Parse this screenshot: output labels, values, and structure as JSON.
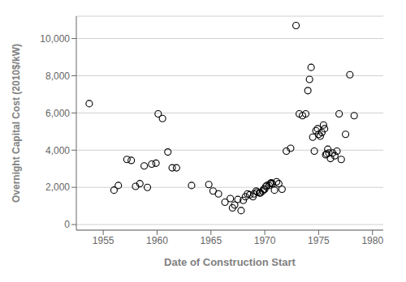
{
  "chart_data": {
    "type": "scatter",
    "xlabel": "Date of Construction Start",
    "ylabel": "Overnight Capital Cost (2010$/kW)",
    "xlim": [
      1952.5,
      1981
    ],
    "ylim": [
      -300,
      11200
    ],
    "xticks": [
      1955,
      1960,
      1965,
      1970,
      1975,
      1980
    ],
    "yticks": [
      0,
      {
        "value": 2000,
        "label": "2,000"
      },
      {
        "value": 4000,
        "label": "4,000"
      },
      {
        "value": 6000,
        "label": "6,000"
      },
      {
        "value": 8000,
        "label": "8,000"
      },
      {
        "value": 10000,
        "label": "10,000"
      }
    ],
    "grid": true,
    "color": "#000000",
    "marker": "circle",
    "x": [
      1953.7,
      1956.0,
      1956.4,
      1957.2,
      1957.6,
      1958.0,
      1958.4,
      1958.8,
      1959.1,
      1959.5,
      1959.9,
      1960.1,
      1960.5,
      1961.0,
      1961.4,
      1961.8,
      1963.2,
      1964.8,
      1965.2,
      1965.7,
      1966.3,
      1966.8,
      1967.0,
      1967.2,
      1967.5,
      1967.8,
      1968.0,
      1968.2,
      1968.4,
      1968.6,
      1968.9,
      1969.0,
      1969.2,
      1969.3,
      1969.5,
      1969.6,
      1969.8,
      1969.9,
      1970.0,
      1970.1,
      1970.2,
      1970.4,
      1970.5,
      1970.6,
      1970.7,
      1970.9,
      1971.1,
      1971.3,
      1971.6,
      1972.0,
      1972.4,
      1972.9,
      1973.2,
      1973.5,
      1973.8,
      1974.0,
      1974.15,
      1974.3,
      1974.45,
      1974.6,
      1974.75,
      1974.9,
      1975.0,
      1975.15,
      1975.3,
      1975.45,
      1975.55,
      1975.65,
      1975.75,
      1975.85,
      1975.95,
      1976.1,
      1976.3,
      1976.5,
      1976.7,
      1976.9,
      1977.1,
      1977.5,
      1977.9,
      1978.3
    ],
    "values": [
      6500,
      1850,
      2100,
      3500,
      3450,
      2050,
      2200,
      3150,
      2000,
      3250,
      3300,
      5950,
      5700,
      3900,
      3050,
      3050,
      2100,
      2150,
      1800,
      1650,
      1200,
      1400,
      900,
      1050,
      1350,
      750,
      1300,
      1500,
      1650,
      1600,
      1500,
      1650,
      1800,
      1750,
      1700,
      1700,
      1800,
      1900,
      1900,
      2050,
      2100,
      2100,
      2200,
      2250,
      2200,
      1850,
      2300,
      2200,
      1900,
      3950,
      4100,
      10700,
      5950,
      5850,
      5950,
      7200,
      7800,
      8450,
      4700,
      3950,
      5050,
      5150,
      4850,
      4750,
      4950,
      5350,
      5150,
      3750,
      3800,
      4050,
      3850,
      3550,
      3850,
      3700,
      3950,
      5950,
      3500,
      4850,
      8050,
      5850
    ]
  }
}
